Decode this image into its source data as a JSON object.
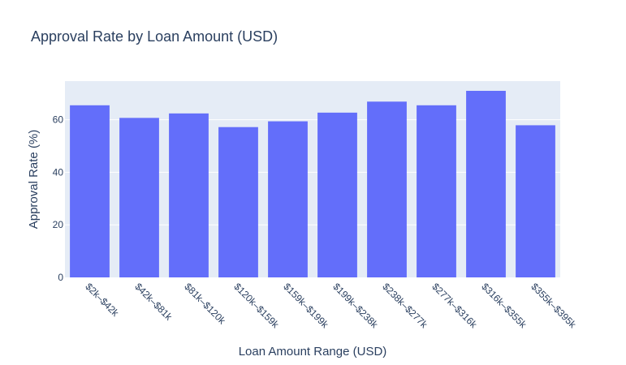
{
  "chart_data": {
    "type": "bar",
    "title": "Approval Rate by Loan Amount (USD)",
    "xlabel": "Loan Amount Range (USD)",
    "ylabel": "Approval Rate (%)",
    "categories": [
      "$2k–$42k",
      "$42k–$81k",
      "$81k–$120k",
      "$120k–$159k",
      "$159k–$199k",
      "$199k–$238k",
      "$238k–$277k",
      "$277k–$316k",
      "$316k–$355k",
      "$355k–$395k"
    ],
    "values": [
      65.5,
      60.7,
      62.4,
      57.2,
      59.4,
      62.7,
      66.9,
      65.5,
      71.0,
      57.9
    ],
    "ylim": [
      0,
      74.7
    ],
    "yticks": [
      0,
      20,
      40,
      60
    ],
    "grid": true,
    "legend": "none",
    "colors": {
      "bar": "#636efa",
      "plot_bg": "#e5ecf6",
      "text": "#2a3f5f"
    }
  }
}
